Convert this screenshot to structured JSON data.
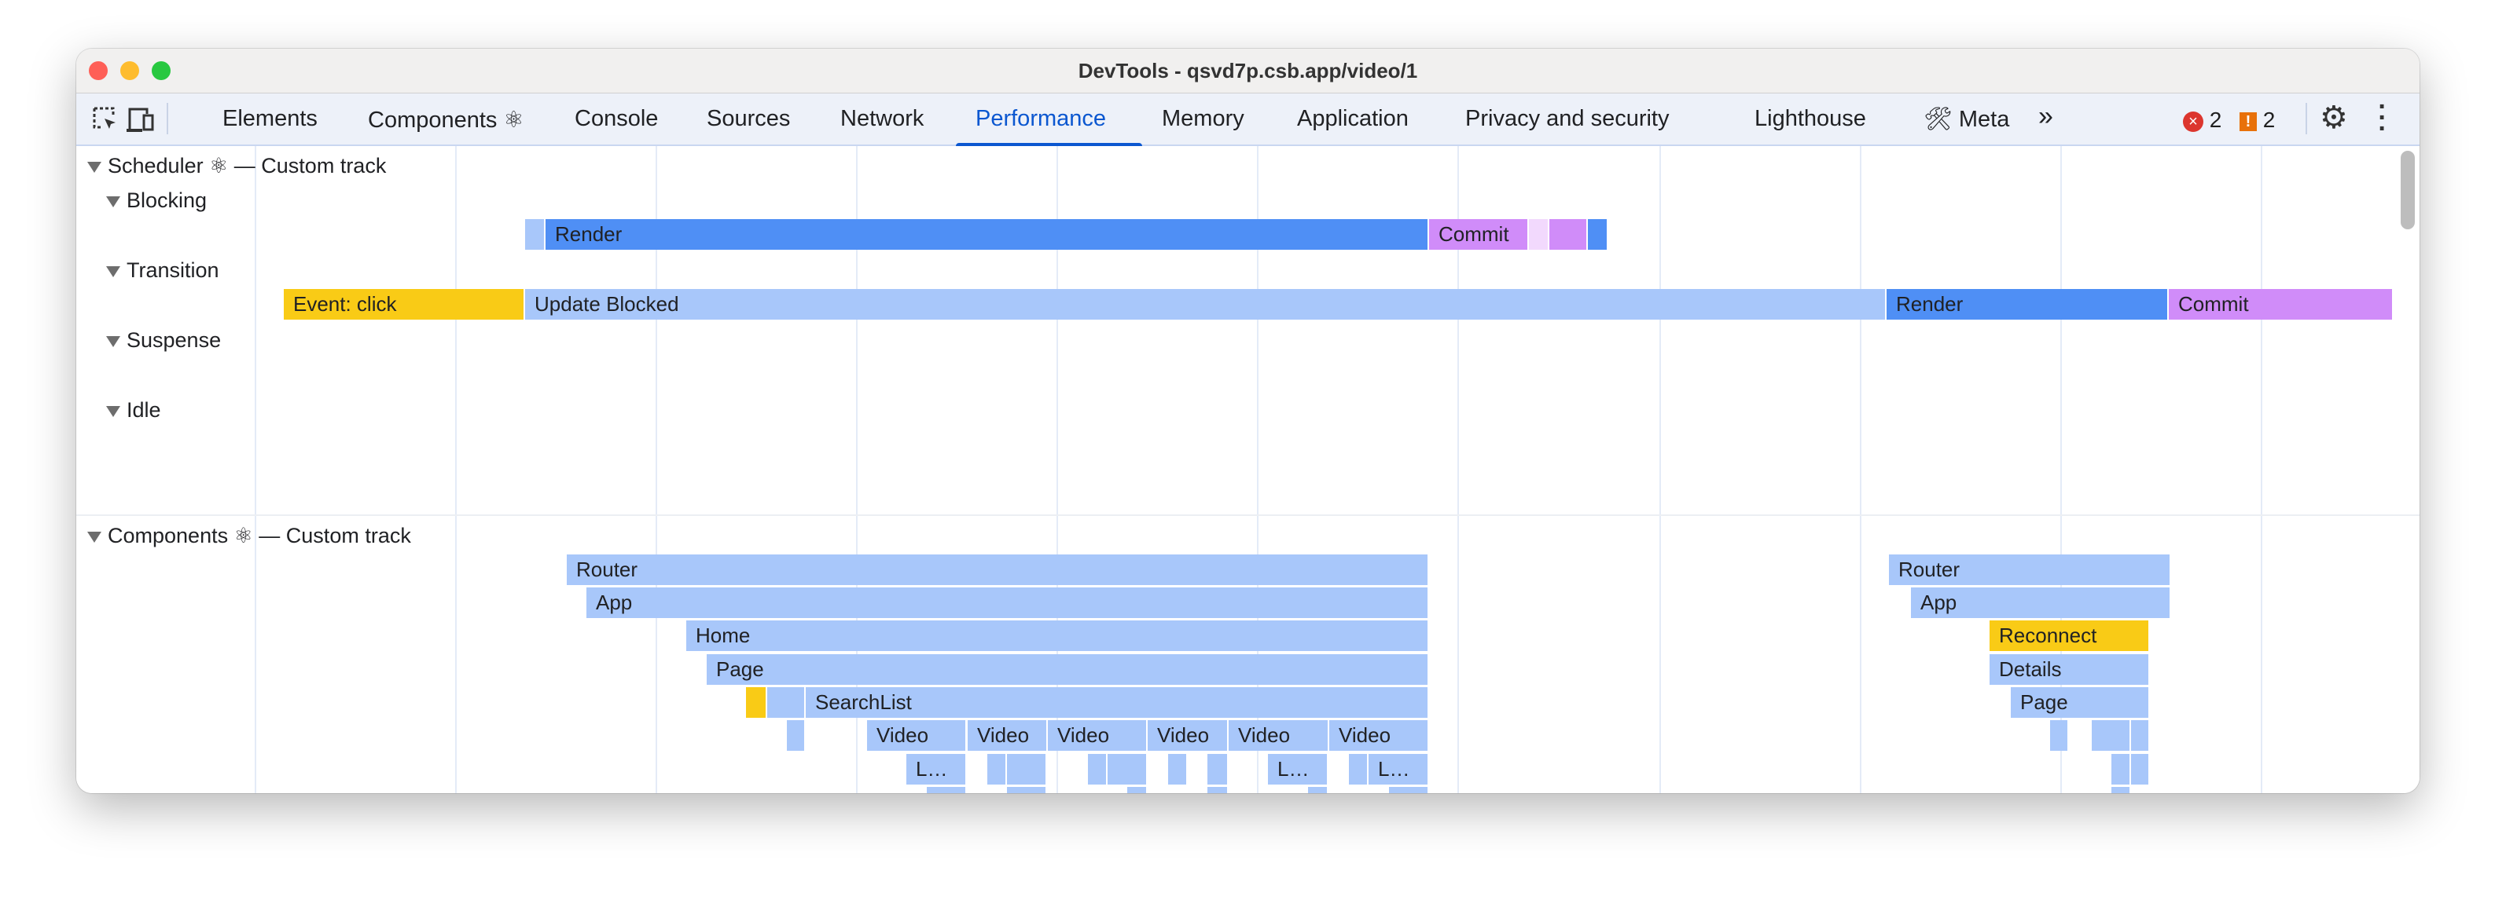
{
  "window": {
    "title": "DevTools - qsvd7p.csb.app/video/1"
  },
  "toolbar": {
    "tabs": [
      {
        "label": "Elements"
      },
      {
        "label": "Components ⚛"
      },
      {
        "label": "Console"
      },
      {
        "label": "Sources"
      },
      {
        "label": "Network"
      },
      {
        "label": "Performance",
        "active": true
      },
      {
        "label": "Memory"
      },
      {
        "label": "Application"
      },
      {
        "label": "Privacy and security"
      },
      {
        "label": "Lighthouse"
      },
      {
        "label": "Meta",
        "icon": "hammer-wrench-icon"
      }
    ],
    "more": "»",
    "errors": "2",
    "warnings": "2",
    "accent": "#0b57d0"
  },
  "scheduler": {
    "title": "Scheduler ⚛ — Custom track",
    "lanes": [
      "Blocking",
      "Transition",
      "Suspense",
      "Idle"
    ],
    "blocking": {
      "render": "Render",
      "commit": "Commit"
    },
    "transition": {
      "event": "Event: click",
      "blocked": "Update Blocked",
      "render": "Render",
      "commit": "Commit"
    }
  },
  "components": {
    "title": "Components ⚛ — Custom track",
    "left": {
      "router": "Router",
      "app": "App",
      "home": "Home",
      "page": "Page",
      "searchlist": "SearchList",
      "video": "Video",
      "truncated": "L…"
    },
    "right": {
      "router": "Router",
      "app": "App",
      "reconnect": "Reconnect",
      "details": "Details",
      "page": "Page"
    }
  },
  "colors": {
    "light_blue": "#a8c7fa",
    "blue": "#4f8ff5",
    "yellow": "#f9cb16",
    "purple": "#d08cf9"
  }
}
